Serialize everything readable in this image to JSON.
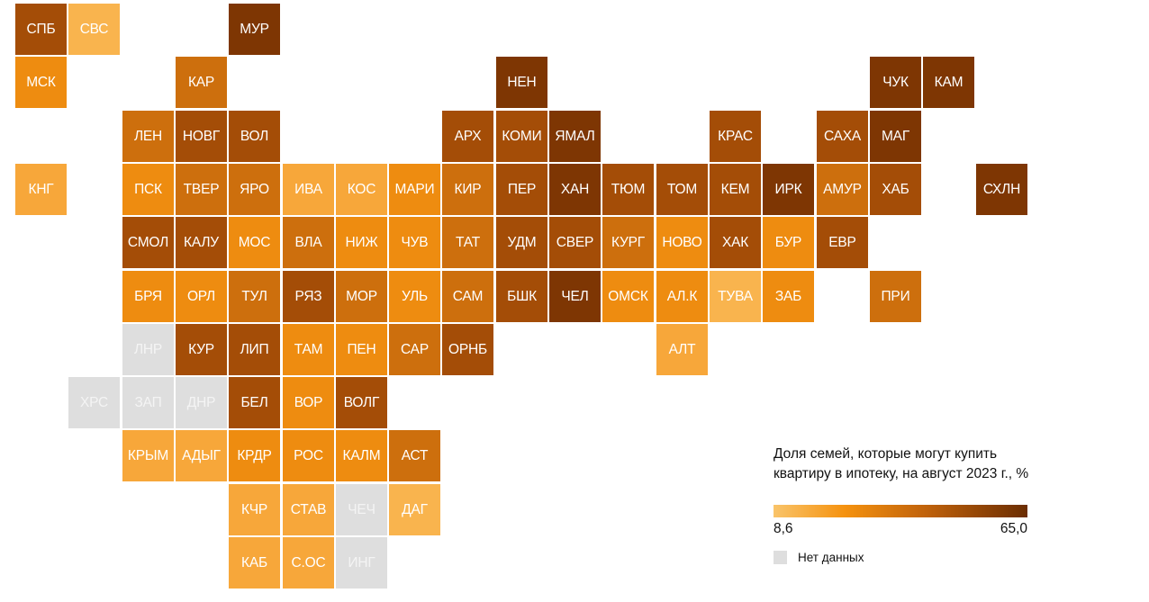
{
  "legend": {
    "title": "Доля семей, которые могут купить квартиру в ипотеку, на август 2023 г., %",
    "min_label": "8,6",
    "max_label": "65,0",
    "min_value": 8.6,
    "max_value": 65.0,
    "nodata_label": "Нет данных",
    "nodata_color": "#dedede",
    "gradient_colors": [
      "#f9c46a",
      "#f5920f",
      "#c0620b",
      "#6b2d02"
    ]
  },
  "regions": [
    {
      "code": "СПБ",
      "row": 0,
      "col": 0,
      "shade": 4
    },
    {
      "code": "СВС",
      "row": 0,
      "col": 1,
      "shade": 0
    },
    {
      "code": "МУР",
      "row": 0,
      "col": 4,
      "shade": 5
    },
    {
      "code": "МСК",
      "row": 1,
      "col": 0,
      "shade": 2
    },
    {
      "code": "КАР",
      "row": 1,
      "col": 3,
      "shade": 3
    },
    {
      "code": "НЕН",
      "row": 1,
      "col": 9,
      "shade": 5
    },
    {
      "code": "ЧУК",
      "row": 1,
      "col": 16,
      "shade": 5
    },
    {
      "code": "КАМ",
      "row": 1,
      "col": 17,
      "shade": 5
    },
    {
      "code": "ЛЕН",
      "row": 2,
      "col": 2,
      "shade": 3
    },
    {
      "code": "НОВГ",
      "row": 2,
      "col": 3,
      "shade": 4
    },
    {
      "code": "ВОЛ",
      "row": 2,
      "col": 4,
      "shade": 4
    },
    {
      "code": "АРХ",
      "row": 2,
      "col": 8,
      "shade": 4
    },
    {
      "code": "КОМИ",
      "row": 2,
      "col": 9,
      "shade": 4
    },
    {
      "code": "ЯМАЛ",
      "row": 2,
      "col": 10,
      "shade": 5
    },
    {
      "code": "КРАС",
      "row": 2,
      "col": 13,
      "shade": 4
    },
    {
      "code": "САХА",
      "row": 2,
      "col": 15,
      "shade": 4
    },
    {
      "code": "МАГ",
      "row": 2,
      "col": 16,
      "shade": 5
    },
    {
      "code": "КНГ",
      "row": 3,
      "col": 0,
      "shade": 1
    },
    {
      "code": "ПСК",
      "row": 3,
      "col": 2,
      "shade": 2
    },
    {
      "code": "ТВЕР",
      "row": 3,
      "col": 3,
      "shade": 3
    },
    {
      "code": "ЯРО",
      "row": 3,
      "col": 4,
      "shade": 3
    },
    {
      "code": "ИВА",
      "row": 3,
      "col": 5,
      "shade": 1
    },
    {
      "code": "КОС",
      "row": 3,
      "col": 6,
      "shade": 1
    },
    {
      "code": "МАРИ",
      "row": 3,
      "col": 7,
      "shade": 2
    },
    {
      "code": "КИР",
      "row": 3,
      "col": 8,
      "shade": 3
    },
    {
      "code": "ПЕР",
      "row": 3,
      "col": 9,
      "shade": 4
    },
    {
      "code": "ХАН",
      "row": 3,
      "col": 10,
      "shade": 5
    },
    {
      "code": "ТЮМ",
      "row": 3,
      "col": 11,
      "shade": 4
    },
    {
      "code": "ТОМ",
      "row": 3,
      "col": 12,
      "shade": 4
    },
    {
      "code": "КЕМ",
      "row": 3,
      "col": 13,
      "shade": 4
    },
    {
      "code": "ИРК",
      "row": 3,
      "col": 14,
      "shade": 5
    },
    {
      "code": "АМУР",
      "row": 3,
      "col": 15,
      "shade": 3
    },
    {
      "code": "ХАБ",
      "row": 3,
      "col": 16,
      "shade": 4
    },
    {
      "code": "СХЛН",
      "row": 3,
      "col": 18,
      "shade": 5
    },
    {
      "code": "СМОЛ",
      "row": 4,
      "col": 2,
      "shade": 4
    },
    {
      "code": "КАЛУ",
      "row": 4,
      "col": 3,
      "shade": 4
    },
    {
      "code": "МОС",
      "row": 4,
      "col": 4,
      "shade": 2
    },
    {
      "code": "ВЛА",
      "row": 4,
      "col": 5,
      "shade": 3
    },
    {
      "code": "НИЖ",
      "row": 4,
      "col": 6,
      "shade": 2
    },
    {
      "code": "ЧУВ",
      "row": 4,
      "col": 7,
      "shade": 2
    },
    {
      "code": "ТАТ",
      "row": 4,
      "col": 8,
      "shade": 3
    },
    {
      "code": "УДМ",
      "row": 4,
      "col": 9,
      "shade": 4
    },
    {
      "code": "СВЕР",
      "row": 4,
      "col": 10,
      "shade": 4
    },
    {
      "code": "КУРГ",
      "row": 4,
      "col": 11,
      "shade": 3
    },
    {
      "code": "НОВО",
      "row": 4,
      "col": 12,
      "shade": 2
    },
    {
      "code": "ХАК",
      "row": 4,
      "col": 13,
      "shade": 4
    },
    {
      "code": "БУР",
      "row": 4,
      "col": 14,
      "shade": 2
    },
    {
      "code": "ЕВР",
      "row": 4,
      "col": 15,
      "shade": 4
    },
    {
      "code": "БРЯ",
      "row": 5,
      "col": 2,
      "shade": 2
    },
    {
      "code": "ОРЛ",
      "row": 5,
      "col": 3,
      "shade": 2
    },
    {
      "code": "ТУЛ",
      "row": 5,
      "col": 4,
      "shade": 3
    },
    {
      "code": "РЯЗ",
      "row": 5,
      "col": 5,
      "shade": 4
    },
    {
      "code": "МОР",
      "row": 5,
      "col": 6,
      "shade": 3
    },
    {
      "code": "УЛЬ",
      "row": 5,
      "col": 7,
      "shade": 2
    },
    {
      "code": "САМ",
      "row": 5,
      "col": 8,
      "shade": 3
    },
    {
      "code": "БШК",
      "row": 5,
      "col": 9,
      "shade": 4
    },
    {
      "code": "ЧЕЛ",
      "row": 5,
      "col": 10,
      "shade": 5
    },
    {
      "code": "ОМСК",
      "row": 5,
      "col": 11,
      "shade": 2
    },
    {
      "code": "АЛ.К",
      "row": 5,
      "col": 12,
      "shade": 2
    },
    {
      "code": "ТУВА",
      "row": 5,
      "col": 13,
      "shade": 0
    },
    {
      "code": "ЗАБ",
      "row": 5,
      "col": 14,
      "shade": 2
    },
    {
      "code": "ПРИ",
      "row": 5,
      "col": 16,
      "shade": 3
    },
    {
      "code": "ЛНР",
      "row": 6,
      "col": 2,
      "shade": -1
    },
    {
      "code": "КУР",
      "row": 6,
      "col": 3,
      "shade": 4
    },
    {
      "code": "ЛИП",
      "row": 6,
      "col": 4,
      "shade": 4
    },
    {
      "code": "ТАМ",
      "row": 6,
      "col": 5,
      "shade": 2
    },
    {
      "code": "ПЕН",
      "row": 6,
      "col": 6,
      "shade": 2
    },
    {
      "code": "САР",
      "row": 6,
      "col": 7,
      "shade": 3
    },
    {
      "code": "ОРНБ",
      "row": 6,
      "col": 8,
      "shade": 4
    },
    {
      "code": "АЛТ",
      "row": 6,
      "col": 12,
      "shade": 1
    },
    {
      "code": "ХРС",
      "row": 7,
      "col": 1,
      "shade": -1
    },
    {
      "code": "ЗАП",
      "row": 7,
      "col": 2,
      "shade": -1
    },
    {
      "code": "ДНР",
      "row": 7,
      "col": 3,
      "shade": -1
    },
    {
      "code": "БЕЛ",
      "row": 7,
      "col": 4,
      "shade": 4
    },
    {
      "code": "ВОР",
      "row": 7,
      "col": 5,
      "shade": 2
    },
    {
      "code": "ВОЛГ",
      "row": 7,
      "col": 6,
      "shade": 4
    },
    {
      "code": "КРЫМ",
      "row": 8,
      "col": 2,
      "shade": 1
    },
    {
      "code": "АДЫГ",
      "row": 8,
      "col": 3,
      "shade": 1
    },
    {
      "code": "КРДР",
      "row": 8,
      "col": 4,
      "shade": 2
    },
    {
      "code": "РОС",
      "row": 8,
      "col": 5,
      "shade": 2
    },
    {
      "code": "КАЛМ",
      "row": 8,
      "col": 6,
      "shade": 2
    },
    {
      "code": "АСТ",
      "row": 8,
      "col": 7,
      "shade": 3
    },
    {
      "code": "КЧР",
      "row": 9,
      "col": 4,
      "shade": 1
    },
    {
      "code": "СТАВ",
      "row": 9,
      "col": 5,
      "shade": 1
    },
    {
      "code": "ЧЕЧ",
      "row": 9,
      "col": 6,
      "shade": -1
    },
    {
      "code": "ДАГ",
      "row": 9,
      "col": 7,
      "shade": 0
    },
    {
      "code": "КАБ",
      "row": 10,
      "col": 4,
      "shade": 1
    },
    {
      "code": "С.ОС",
      "row": 10,
      "col": 5,
      "shade": 1
    },
    {
      "code": "ИНГ",
      "row": 10,
      "col": 6,
      "shade": -1
    }
  ],
  "shade_colors": [
    "#f9b44e",
    "#f7a73a",
    "#ee8c10",
    "#cd6f0d",
    "#a44d07",
    "#7e3603"
  ]
}
